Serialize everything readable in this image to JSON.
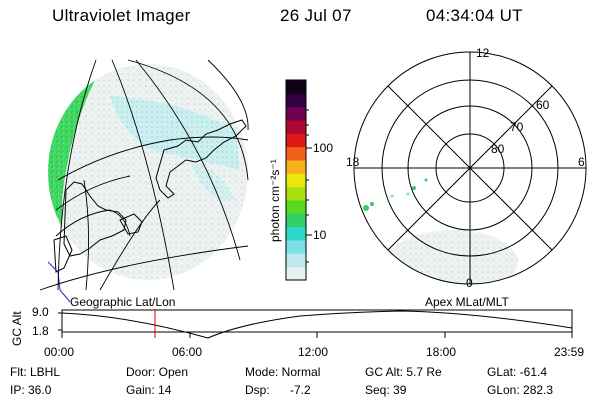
{
  "header": {
    "title": "Ultraviolet Imager",
    "date": "26 Jul 07",
    "time": "04:34:04 UT"
  },
  "colorbar": {
    "unit_label": "photon cm⁻²s⁻¹",
    "ticks": [
      "100",
      "10"
    ],
    "colors": [
      "#e6f3f3",
      "#bfe8ec",
      "#7ee0e6",
      "#2ed8c8",
      "#30d068",
      "#58d820",
      "#a8e010",
      "#e8e810",
      "#f8b018",
      "#f06018",
      "#e01818",
      "#b00830",
      "#700050",
      "#300040",
      "#100018"
    ]
  },
  "polar_plot": {
    "mlt_labels": [
      "12",
      "18",
      "6",
      "0"
    ],
    "lat_labels": [
      "60",
      "70",
      "80"
    ]
  },
  "left_panel_label": "Geographic Lat/Lon",
  "right_panel_label": "Apex MLat/MLT",
  "altitude_plot": {
    "ylabel": "GC Alt",
    "yticks": [
      "9.0",
      "1.8"
    ],
    "xticks": [
      "00:00",
      "06:00",
      "12:00",
      "18:00",
      "23:59"
    ],
    "current_time_marker_color": "#e00000"
  },
  "info": {
    "flt": "Flt: LBHL",
    "ip": "IP: 36.0",
    "door": "Door: Open",
    "gain": "Gain: 14",
    "mode": "Mode: Normal",
    "dsp_label": "Dsp:",
    "dsp_value": "-7.2",
    "gcalt": "GC Alt: 5.7 Re",
    "seq": "Seq: 39",
    "glat": "GLat: -61.4",
    "glon": "GLon: 282.3"
  }
}
